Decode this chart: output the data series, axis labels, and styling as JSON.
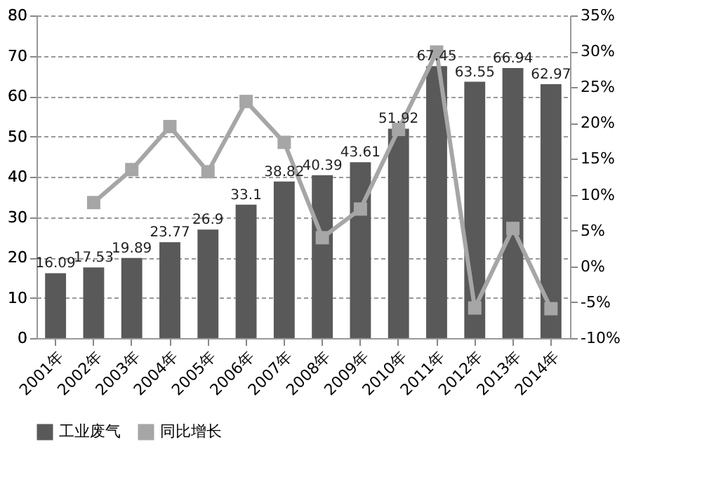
{
  "chart_data": {
    "type": "bar",
    "categories": [
      "2001年",
      "2002年",
      "2003年",
      "2004年",
      "2005年",
      "2006年",
      "2007年",
      "2008年",
      "2009年",
      "2010年",
      "2011年",
      "2012年",
      "2013年",
      "2014年"
    ],
    "series": [
      {
        "name": "工业废气",
        "color": "#595959",
        "values": [
          16.09,
          17.53,
          19.89,
          23.77,
          26.9,
          33.1,
          38.82,
          40.39,
          43.61,
          51.92,
          67.45,
          63.55,
          66.94,
          62.97
        ],
        "value_labels": [
          "16.09",
          "17.53",
          "19.89",
          "23.77",
          "26.9",
          "33.1",
          "38.82",
          "40.39",
          "43.61",
          "51.92",
          "67.45",
          "63.55",
          "66.94",
          "62.97"
        ]
      },
      {
        "name": "同比增长",
        "color": "#a6a6a6",
        "type": "line",
        "axis": "y2",
        "marker": "square",
        "values": [
          null,
          8.9,
          13.5,
          19.5,
          13.2,
          23.0,
          17.3,
          4.0,
          8.0,
          19.1,
          29.9,
          -5.8,
          5.3,
          -5.9
        ]
      }
    ],
    "ylim": [
      0,
      80
    ],
    "yticks": [
      0,
      10,
      20,
      30,
      40,
      50,
      60,
      70,
      80
    ],
    "y2lim": [
      -10,
      35
    ],
    "y2ticks": [
      {
        "value": -10,
        "label": "-10%"
      },
      {
        "value": -5,
        "label": "-5%"
      },
      {
        "value": 0,
        "label": "0%"
      },
      {
        "value": 5,
        "label": "5%"
      },
      {
        "value": 10,
        "label": "10%"
      },
      {
        "value": 15,
        "label": "15%"
      },
      {
        "value": 20,
        "label": "20%"
      },
      {
        "value": 25,
        "label": "25%"
      },
      {
        "value": 30,
        "label": "30%"
      },
      {
        "value": 35,
        "label": "35%"
      }
    ],
    "grid": "y",
    "legend": "bottom"
  }
}
